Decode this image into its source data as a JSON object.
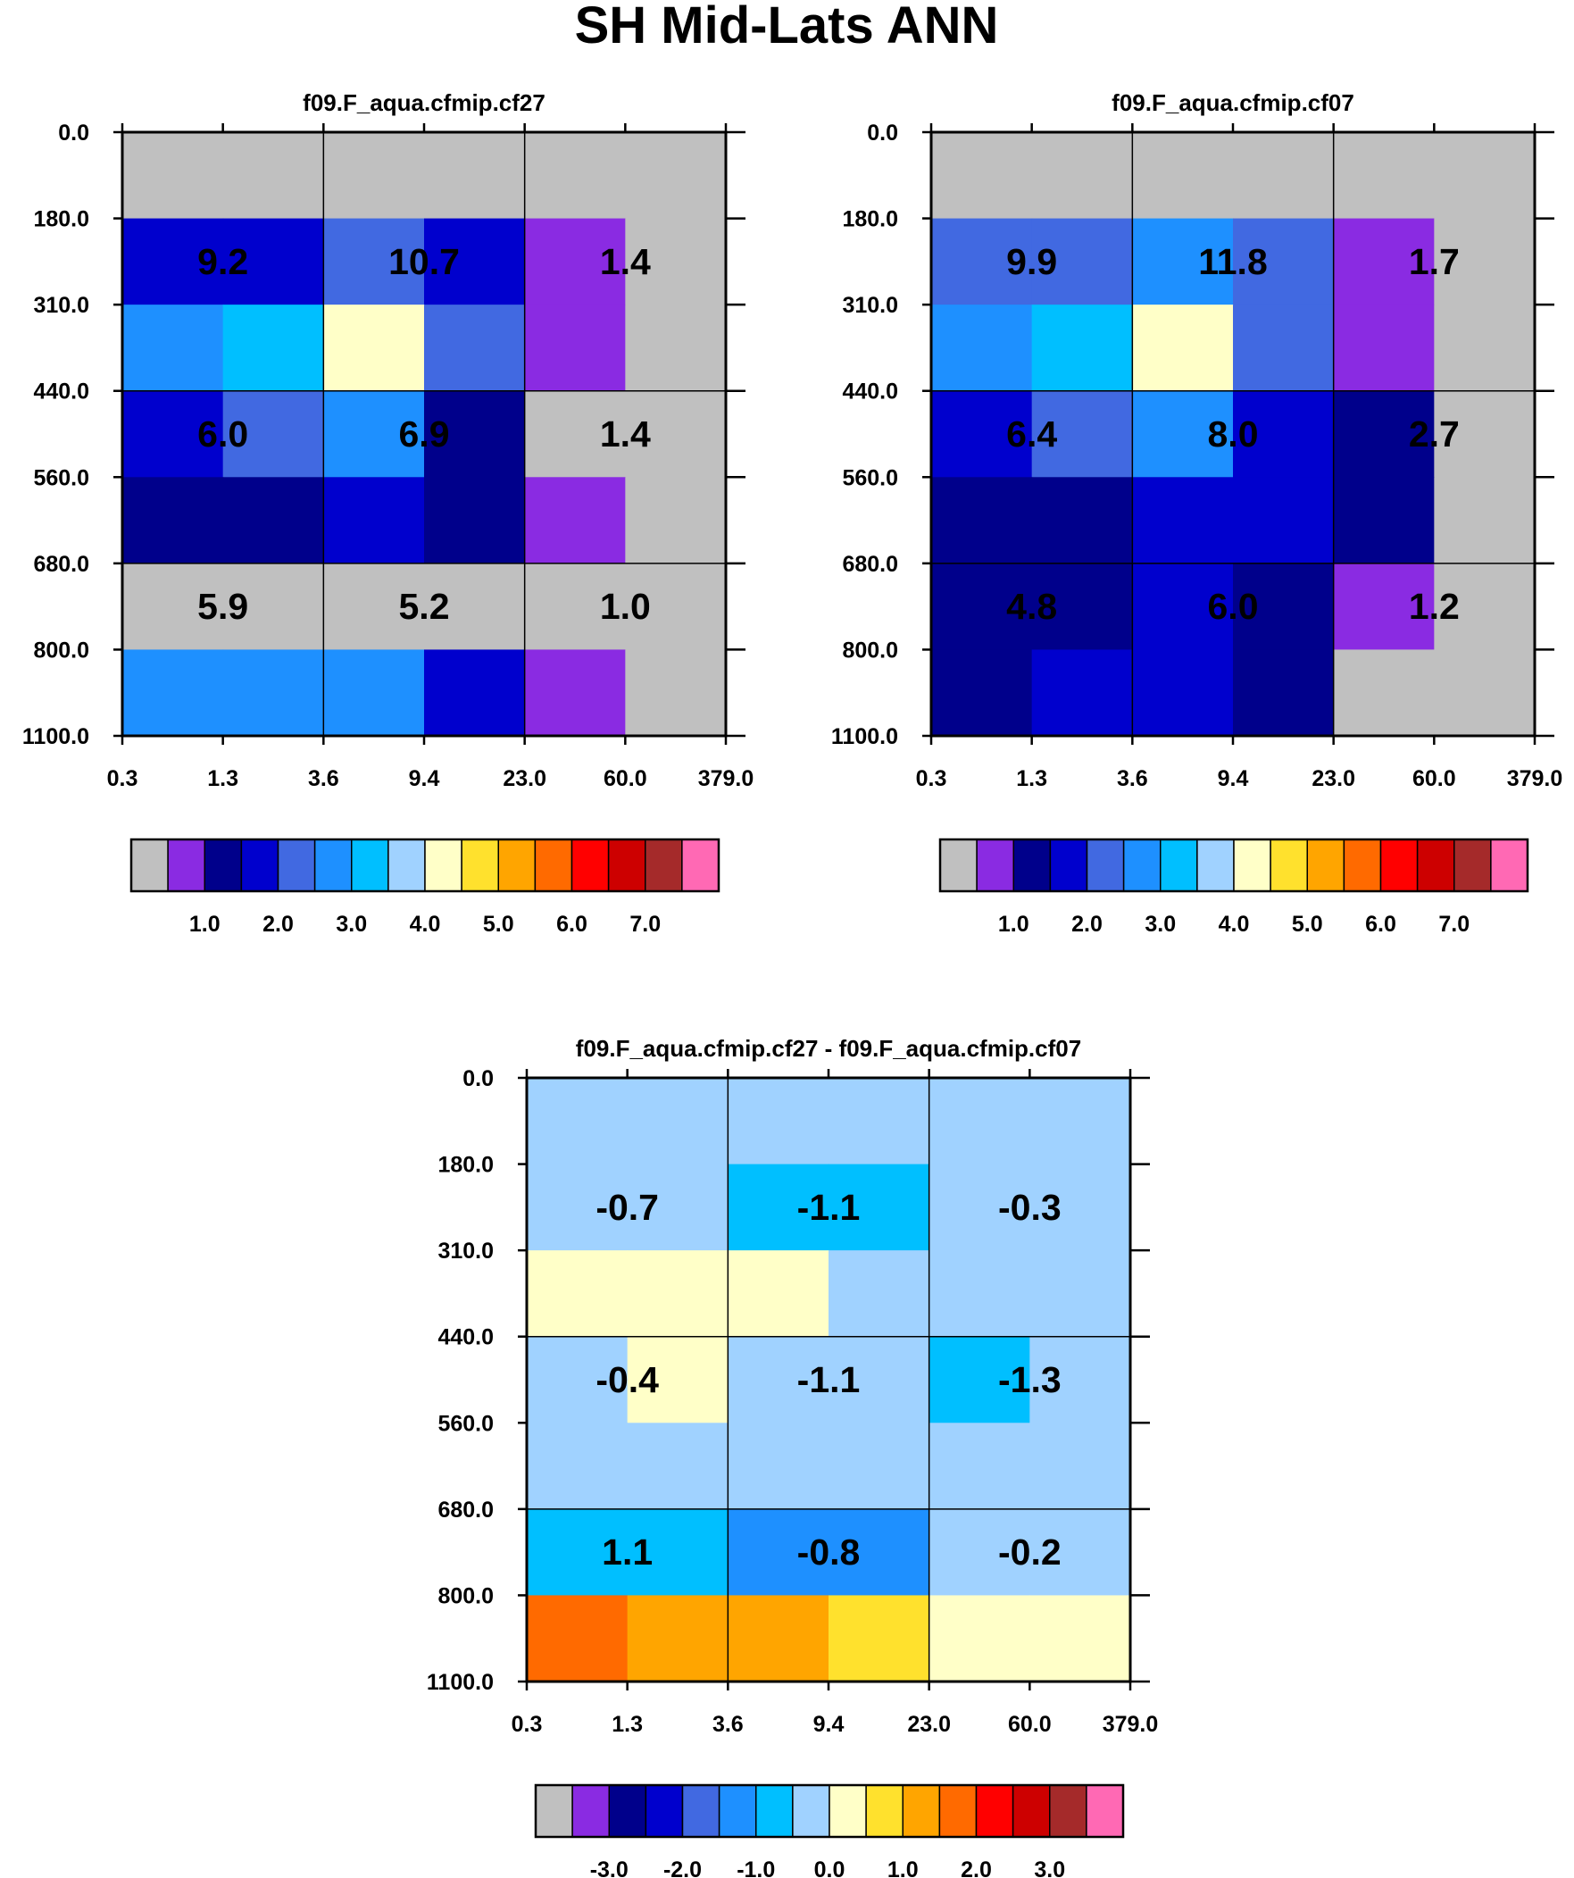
{
  "title": "SH Mid-Lats ANN",
  "palette": [
    "#c0c0c0",
    "#8a2be2",
    "#00008b",
    "#0000cd",
    "#4169e1",
    "#1e90ff",
    "#00bfff",
    "#a0d2ff",
    "#ffffc8",
    "#ffe12d",
    "#ffa500",
    "#ff6a00",
    "#ff0000",
    "#cd0000",
    "#a52a2a",
    "#ff69b4"
  ],
  "chart_data": [
    {
      "type": "heatmap",
      "title": "f09.F_aqua.cfmip.cf27",
      "xticks": [
        "0.3",
        "1.3",
        "3.6",
        "9.4",
        "23.0",
        "60.0",
        "379.0"
      ],
      "yticks": [
        "0.0",
        "180.0",
        "310.0",
        "440.0",
        "560.0",
        "680.0",
        "800.0",
        "1100.0"
      ],
      "cell_index_grid": [
        [
          0,
          0,
          0,
          0,
          0,
          0
        ],
        [
          3,
          3,
          4,
          3,
          1,
          0
        ],
        [
          5,
          6,
          8,
          4,
          1,
          0
        ],
        [
          3,
          4,
          5,
          2,
          0,
          0
        ],
        [
          2,
          2,
          3,
          2,
          1,
          0
        ],
        [
          0,
          0,
          0,
          0,
          0,
          0
        ],
        [
          5,
          5,
          5,
          3,
          1,
          0
        ]
      ],
      "box_labels": [
        [
          "9.2",
          "10.7",
          "1.4"
        ],
        [
          "6.0",
          "6.9",
          "1.4"
        ],
        [
          "5.9",
          "5.2",
          "1.0"
        ]
      ],
      "colorbar_labels": [
        "1.0",
        "2.0",
        "3.0",
        "4.0",
        "5.0",
        "6.0",
        "7.0"
      ]
    },
    {
      "type": "heatmap",
      "title": "f09.F_aqua.cfmip.cf07",
      "xticks": [
        "0.3",
        "1.3",
        "3.6",
        "9.4",
        "23.0",
        "60.0",
        "379.0"
      ],
      "yticks": [
        "0.0",
        "180.0",
        "310.0",
        "440.0",
        "560.0",
        "680.0",
        "800.0",
        "1100.0"
      ],
      "cell_index_grid": [
        [
          0,
          0,
          0,
          0,
          0,
          0
        ],
        [
          4,
          4,
          5,
          4,
          1,
          0
        ],
        [
          5,
          6,
          8,
          4,
          1,
          0
        ],
        [
          3,
          4,
          5,
          3,
          2,
          0
        ],
        [
          2,
          2,
          3,
          3,
          2,
          0
        ],
        [
          2,
          2,
          3,
          2,
          1,
          0
        ],
        [
          2,
          3,
          3,
          2,
          0,
          0
        ]
      ],
      "box_labels": [
        [
          "9.9",
          "11.8",
          "1.7"
        ],
        [
          "6.4",
          "8.0",
          "2.7"
        ],
        [
          "4.8",
          "6.0",
          "1.2"
        ]
      ],
      "colorbar_labels": [
        "1.0",
        "2.0",
        "3.0",
        "4.0",
        "5.0",
        "6.0",
        "7.0"
      ]
    },
    {
      "type": "heatmap",
      "title": "f09.F_aqua.cfmip.cf27 - f09.F_aqua.cfmip.cf07",
      "xticks": [
        "0.3",
        "1.3",
        "3.6",
        "9.4",
        "23.0",
        "60.0",
        "379.0"
      ],
      "yticks": [
        "0.0",
        "180.0",
        "310.0",
        "440.0",
        "560.0",
        "680.0",
        "800.0",
        "1100.0"
      ],
      "cell_index_grid": [
        [
          7,
          7,
          7,
          7,
          7,
          7
        ],
        [
          7,
          7,
          6,
          6,
          7,
          7
        ],
        [
          8,
          8,
          8,
          7,
          7,
          7
        ],
        [
          7,
          8,
          7,
          7,
          6,
          7
        ],
        [
          7,
          7,
          7,
          7,
          7,
          7
        ],
        [
          6,
          6,
          5,
          5,
          7,
          7
        ],
        [
          11,
          10,
          10,
          9,
          8,
          8
        ]
      ],
      "box_labels": [
        [
          "-0.7",
          "-1.1",
          "-0.3"
        ],
        [
          "-0.4",
          "-1.1",
          "-1.3"
        ],
        [
          "1.1",
          "-0.8",
          "-0.2"
        ]
      ],
      "colorbar_labels": [
        "-3.0",
        "-2.0",
        "-1.0",
        "0.0",
        "1.0",
        "2.0",
        "3.0"
      ]
    }
  ]
}
